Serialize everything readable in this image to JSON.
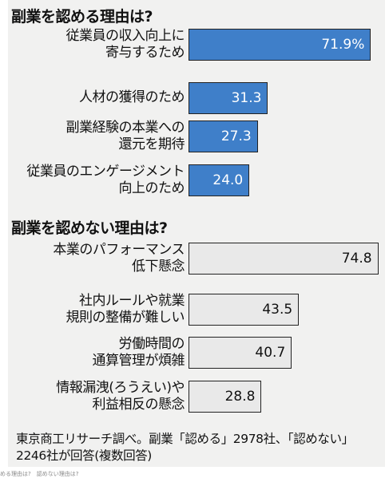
{
  "chart_data": [
    {
      "type": "bar",
      "title": "副業を認める理由は?",
      "categories": [
        "従業員の収入向上に\n寄与するため",
        "人材の獲得のため",
        "副業経験の本業への\n還元を期待",
        "従業員のエンゲージメント\n向上のため"
      ],
      "values": [
        71.9,
        31.3,
        27.3,
        24.0
      ],
      "value_labels": [
        "71.9%",
        "31.3",
        "27.3",
        "24.0"
      ],
      "color": "#3f7fc9"
    },
    {
      "type": "bar",
      "title": "副業を認めない理由は?",
      "categories": [
        "本業のパフォーマンス\n低下懸念",
        "社内ルールや就業\n規則の整備が難しい",
        "労働時間の\n通算管理が煩雑",
        "情報漏洩(ろうえい)や\n利益相反の懸念"
      ],
      "values": [
        74.8,
        43.5,
        40.7,
        28.8
      ],
      "value_labels": [
        "74.8",
        "43.5",
        "40.7",
        "28.8"
      ],
      "color": "#e9e9e9"
    }
  ],
  "footnote": "東京商工リサーチ調べ。副業「認める」2978社、「認めない」2246社が回答(複数回答)",
  "caption": "める理由は?　認めない理由は?"
}
